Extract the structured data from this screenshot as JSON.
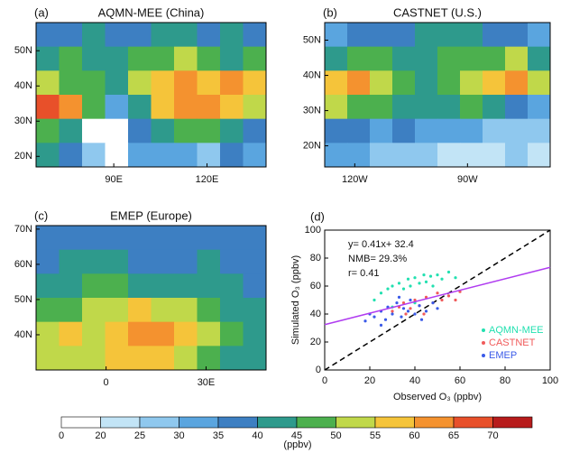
{
  "chart_data": [
    {
      "type": "map",
      "panel": "(a)",
      "title": "AQMN-MEE (China)",
      "xlim": [
        65,
        139
      ],
      "ylim": [
        17,
        58
      ],
      "xticks": [
        {
          "value": 90,
          "label": "90E"
        },
        {
          "value": 120,
          "label": "120E"
        }
      ],
      "yticks": [
        {
          "value": 50,
          "label": "50N"
        },
        {
          "value": 40,
          "label": "40N"
        },
        {
          "value": 30,
          "label": "30N"
        },
        {
          "value": 20,
          "label": "20N"
        }
      ],
      "grid": [
        [
          35,
          35,
          40,
          35,
          35,
          40,
          40,
          35,
          40,
          35
        ],
        [
          40,
          45,
          40,
          40,
          45,
          45,
          50,
          45,
          40,
          45
        ],
        [
          50,
          45,
          45,
          40,
          50,
          55,
          60,
          55,
          60,
          55
        ],
        [
          65,
          60,
          45,
          30,
          40,
          55,
          60,
          60,
          55,
          50
        ],
        [
          45,
          40,
          15,
          15,
          35,
          40,
          45,
          45,
          40,
          35
        ],
        [
          40,
          35,
          25,
          15,
          30,
          30,
          30,
          25,
          35,
          30
        ]
      ]
    },
    {
      "type": "map",
      "panel": "(b)",
      "title": "CASTNET (U.S.)",
      "xlim": [
        -128,
        -68
      ],
      "ylim": [
        14,
        55
      ],
      "xticks": [
        {
          "value": -120,
          "label": "120W"
        },
        {
          "value": -90,
          "label": "90W"
        }
      ],
      "yticks": [
        {
          "value": 50,
          "label": "50N"
        },
        {
          "value": 40,
          "label": "40N"
        },
        {
          "value": 30,
          "label": "30N"
        },
        {
          "value": 20,
          "label": "20N"
        }
      ],
      "grid": [
        [
          30,
          35,
          35,
          35,
          40,
          40,
          40,
          35,
          35,
          30
        ],
        [
          40,
          45,
          45,
          40,
          40,
          45,
          45,
          45,
          50,
          40
        ],
        [
          55,
          60,
          50,
          45,
          40,
          45,
          50,
          55,
          60,
          50
        ],
        [
          50,
          45,
          45,
          40,
          40,
          40,
          45,
          40,
          35,
          30
        ],
        [
          35,
          35,
          30,
          35,
          30,
          30,
          30,
          25,
          25,
          25
        ],
        [
          30,
          30,
          25,
          25,
          25,
          20,
          20,
          20,
          25,
          20
        ]
      ]
    },
    {
      "type": "map",
      "panel": "(c)",
      "title": "EMEP (Europe)",
      "xlim": [
        -21,
        48
      ],
      "ylim": [
        30,
        71
      ],
      "xticks": [
        {
          "value": 0,
          "label": "0"
        },
        {
          "value": 30,
          "label": "30E"
        }
      ],
      "yticks": [
        {
          "value": 70,
          "label": "70N"
        },
        {
          "value": 60,
          "label": "60N"
        },
        {
          "value": 50,
          "label": "50N"
        },
        {
          "value": 40,
          "label": "40N"
        }
      ],
      "grid": [
        [
          35,
          35,
          35,
          35,
          35,
          35,
          35,
          35,
          35,
          35
        ],
        [
          35,
          40,
          40,
          40,
          35,
          35,
          35,
          40,
          35,
          35
        ],
        [
          40,
          40,
          45,
          45,
          40,
          40,
          40,
          40,
          40,
          35
        ],
        [
          45,
          45,
          50,
          50,
          55,
          50,
          50,
          45,
          40,
          40
        ],
        [
          50,
          55,
          50,
          55,
          60,
          60,
          55,
          50,
          45,
          40
        ],
        [
          50,
          50,
          50,
          55,
          55,
          55,
          50,
          45,
          40,
          40
        ]
      ]
    },
    {
      "type": "scatter",
      "panel": "(d)",
      "x_label": "Observed O₃ (ppbv)",
      "y_label": "Simulated O₃ (ppbv)",
      "xlim": [
        0,
        100
      ],
      "ylim": [
        0,
        100
      ],
      "xticks": [
        0,
        20,
        40,
        60,
        80,
        100
      ],
      "yticks": [
        0,
        20,
        40,
        60,
        80,
        100
      ],
      "annotations": [
        "y= 0.41x+ 32.4",
        "NMB= 29.3%",
        "r= 0.41"
      ],
      "fit": {
        "slope": 0.41,
        "intercept": 32.4,
        "color": "#b03cf0"
      },
      "series": [
        {
          "name": "AQMN-MEE",
          "color": "#22e0b0",
          "x": [
            22,
            25,
            28,
            30,
            33,
            35,
            37,
            38,
            40,
            42,
            44,
            45,
            47,
            48,
            50,
            52,
            55,
            58,
            30,
            40
          ],
          "values": [
            50,
            55,
            58,
            60,
            62,
            58,
            65,
            60,
            66,
            62,
            68,
            63,
            67,
            60,
            68,
            65,
            70,
            66,
            45,
            48
          ]
        },
        {
          "name": "CASTNET",
          "color": "#f05a5a",
          "x": [
            30,
            33,
            35,
            38,
            40,
            42,
            45,
            48,
            50,
            52,
            55,
            58,
            60,
            36,
            44
          ],
          "values": [
            42,
            45,
            48,
            44,
            50,
            46,
            52,
            48,
            55,
            50,
            53,
            50,
            56,
            40,
            40
          ]
        },
        {
          "name": "EMEP",
          "color": "#3a5ae8",
          "x": [
            18,
            20,
            22,
            25,
            27,
            28,
            30,
            32,
            34,
            35,
            37,
            38,
            40,
            42,
            45,
            48,
            50,
            25,
            33,
            43
          ],
          "values": [
            35,
            40,
            38,
            42,
            36,
            45,
            40,
            48,
            38,
            44,
            42,
            50,
            40,
            46,
            42,
            48,
            44,
            32,
            52,
            36
          ]
        }
      ]
    }
  ],
  "colorbar": {
    "label": "(ppbv)",
    "ticks": [
      0,
      20,
      25,
      30,
      35,
      40,
      45,
      50,
      55,
      60,
      65,
      70
    ],
    "colors": [
      "#ffffff",
      "#c2e4f6",
      "#8fc8ee",
      "#5aa5df",
      "#3d7fc2",
      "#2e9a8c",
      "#4cb04e",
      "#c0d84a",
      "#f5c43a",
      "#f4922f",
      "#e8502a",
      "#b71c1c"
    ]
  }
}
